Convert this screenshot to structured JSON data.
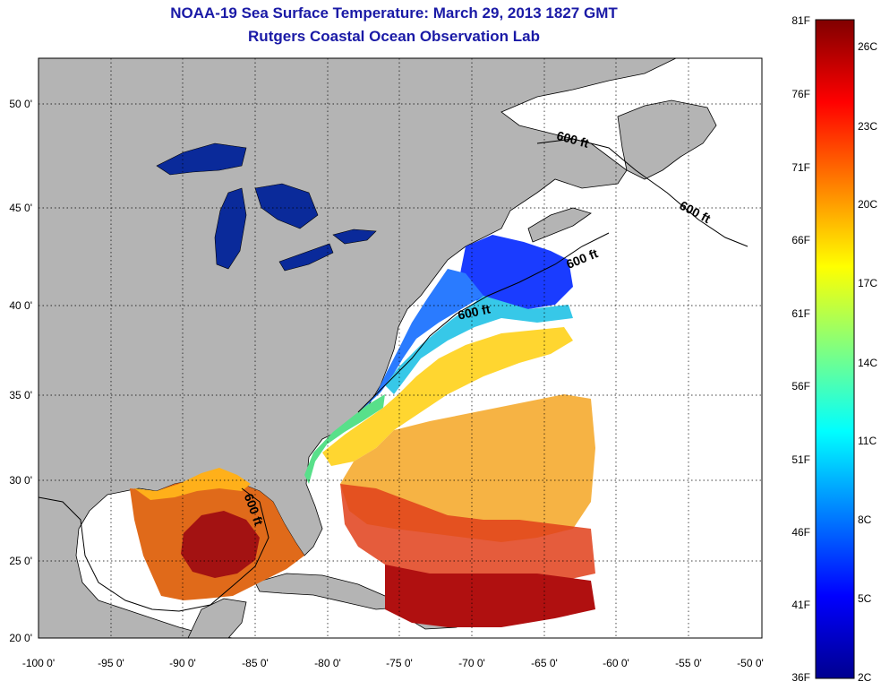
{
  "title": "NOAA-19 Sea Surface Temperature:  March 29, 2013 1827 GMT",
  "subtitle": "Rutgers Coastal Ocean Observation Lab",
  "map": {
    "lat_labels": [
      "50 0'",
      "45 0'",
      "40 0'",
      "35 0'",
      "30 0'",
      "25 0'",
      "20 0'"
    ],
    "lon_labels": [
      "-100 0'",
      "-95 0'",
      "-90 0'",
      "-85 0'",
      "-80 0'",
      "-75 0'",
      "-70 0'",
      "-65 0'",
      "-60 0'",
      "-55 0'",
      "-50 0'"
    ],
    "contour_labels": [
      "600 ft",
      "600 ft",
      "600 ft",
      "600 ft",
      "600 ft"
    ],
    "land_color": "#b4b4b4",
    "grid": "dotted"
  },
  "colorbar": {
    "fahrenheit_labels": [
      "81F",
      "76F",
      "71F",
      "66F",
      "61F",
      "56F",
      "51F",
      "46F",
      "41F",
      "36F"
    ],
    "celsius_labels": [
      "26C",
      "23C",
      "20C",
      "17C",
      "14C",
      "11C",
      "8C",
      "5C",
      "2C"
    ],
    "colormap": "jet",
    "colors": [
      "#00008f",
      "#0000ff",
      "#0080ff",
      "#00ffff",
      "#80ff80",
      "#ffff00",
      "#ff8000",
      "#ff0000",
      "#800000"
    ]
  }
}
